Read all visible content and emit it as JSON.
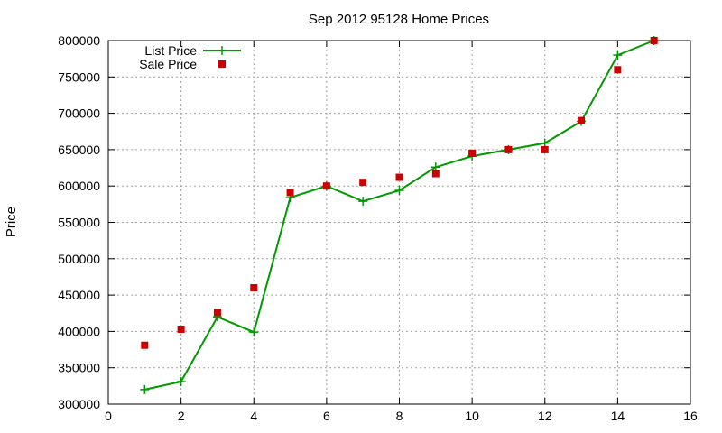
{
  "chart_data": {
    "type": "line",
    "title": "Sep 2012 95128 Home Prices",
    "xlabel": "",
    "ylabel": "Price",
    "xlim": [
      0,
      16
    ],
    "ylim": [
      300000,
      800000
    ],
    "xticks": [
      0,
      2,
      4,
      6,
      8,
      10,
      12,
      14,
      16
    ],
    "yticks": [
      300000,
      350000,
      400000,
      450000,
      500000,
      550000,
      600000,
      650000,
      700000,
      750000,
      800000
    ],
    "grid": true,
    "legend_position": "top-left",
    "series": [
      {
        "name": "List Price",
        "style": "line-with-plus-markers",
        "color": "#009900",
        "x": [
          1,
          2,
          3,
          4,
          5,
          6,
          7,
          8,
          9,
          10,
          11,
          12,
          13,
          14,
          15
        ],
        "y": [
          320000,
          331000,
          420000,
          399000,
          584000,
          600000,
          579000,
          594000,
          626000,
          641000,
          650000,
          659000,
          689000,
          780000,
          800000
        ]
      },
      {
        "name": "Sale Price",
        "style": "square-markers",
        "color": "#cc0000",
        "x": [
          1,
          2,
          3,
          4,
          5,
          6,
          7,
          8,
          9,
          10,
          11,
          12,
          13,
          14,
          15
        ],
        "y": [
          381000,
          403000,
          426000,
          460000,
          591000,
          600000,
          605000,
          612000,
          617000,
          645000,
          650000,
          650000,
          690000,
          760000,
          800000
        ]
      }
    ]
  }
}
